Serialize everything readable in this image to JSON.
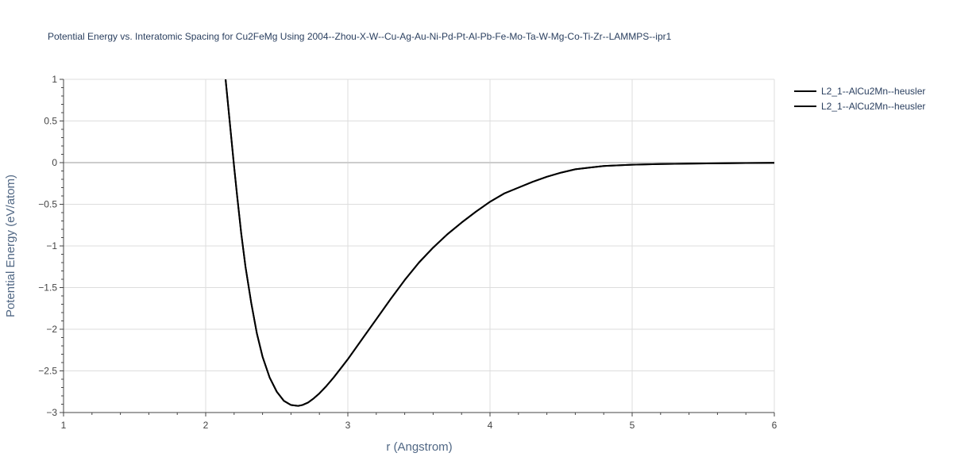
{
  "chart_data": {
    "type": "line",
    "title": "Potential Energy vs. Interatomic Spacing for Cu2FeMg Using 2004--Zhou-X-W--Cu-Ag-Au-Ni-Pd-Pt-Al-Pb-Fe-Mo-Ta-W-Mg-Co-Ti-Zr--LAMMPS--ipr1",
    "xlabel": "r (Angstrom)",
    "ylabel": "Potential Energy (eV/atom)",
    "xlim": [
      1,
      6
    ],
    "ylim": [
      -3,
      1
    ],
    "xticks": [
      "1",
      "2",
      "3",
      "4",
      "5",
      "6"
    ],
    "yticks": [
      "1",
      "0.5",
      "0",
      "−0.5",
      "−1",
      "−1.5",
      "−2",
      "−2.5",
      "−3"
    ],
    "grid": true,
    "legend_position": "top-right",
    "series": [
      {
        "name": "L2_1--AlCu2Mn--heusler",
        "color": "#000000",
        "x": [
          2.14,
          2.16,
          2.18,
          2.2,
          2.22,
          2.25,
          2.28,
          2.32,
          2.36,
          2.4,
          2.45,
          2.5,
          2.55,
          2.6,
          2.65,
          2.68,
          2.72,
          2.76,
          2.8,
          2.85,
          2.9,
          2.95,
          3.0,
          3.1,
          3.2,
          3.3,
          3.4,
          3.5,
          3.6,
          3.7,
          3.8,
          3.9,
          4.0,
          4.1,
          4.2,
          4.3,
          4.4,
          4.5,
          4.6,
          4.7,
          4.8,
          5.0,
          5.2,
          5.4,
          5.6,
          5.8,
          6.0
        ],
        "y": [
          1.0,
          0.65,
          0.3,
          -0.05,
          -0.38,
          -0.85,
          -1.25,
          -1.68,
          -2.05,
          -2.33,
          -2.58,
          -2.75,
          -2.86,
          -2.91,
          -2.92,
          -2.91,
          -2.88,
          -2.83,
          -2.77,
          -2.68,
          -2.58,
          -2.47,
          -2.36,
          -2.12,
          -1.88,
          -1.64,
          -1.41,
          -1.2,
          -1.02,
          -0.86,
          -0.72,
          -0.59,
          -0.47,
          -0.37,
          -0.3,
          -0.23,
          -0.17,
          -0.12,
          -0.08,
          -0.06,
          -0.04,
          -0.025,
          -0.017,
          -0.012,
          -0.008,
          -0.005,
          -0.003
        ]
      },
      {
        "name": "L2_1--AlCu2Mn--heusler",
        "color": "#000000",
        "x": [
          2.14,
          2.16,
          2.18,
          2.2,
          2.22,
          2.25,
          2.28,
          2.32,
          2.36,
          2.4,
          2.45,
          2.5,
          2.55,
          2.6,
          2.65,
          2.68,
          2.72,
          2.76,
          2.8,
          2.85,
          2.9,
          2.95,
          3.0,
          3.1,
          3.2,
          3.3,
          3.4,
          3.5,
          3.6,
          3.7,
          3.8,
          3.9,
          4.0,
          4.1,
          4.2,
          4.3,
          4.4,
          4.5,
          4.6,
          4.7,
          4.8,
          5.0,
          5.2,
          5.4,
          5.6,
          5.8,
          6.0
        ],
        "y": [
          1.0,
          0.65,
          0.3,
          -0.05,
          -0.38,
          -0.85,
          -1.25,
          -1.68,
          -2.05,
          -2.33,
          -2.58,
          -2.75,
          -2.86,
          -2.91,
          -2.92,
          -2.91,
          -2.88,
          -2.83,
          -2.77,
          -2.68,
          -2.58,
          -2.47,
          -2.36,
          -2.12,
          -1.88,
          -1.64,
          -1.41,
          -1.2,
          -1.02,
          -0.86,
          -0.72,
          -0.59,
          -0.47,
          -0.37,
          -0.3,
          -0.23,
          -0.17,
          -0.12,
          -0.08,
          -0.06,
          -0.04,
          -0.025,
          -0.017,
          -0.012,
          -0.008,
          -0.005,
          -0.003
        ]
      }
    ]
  }
}
